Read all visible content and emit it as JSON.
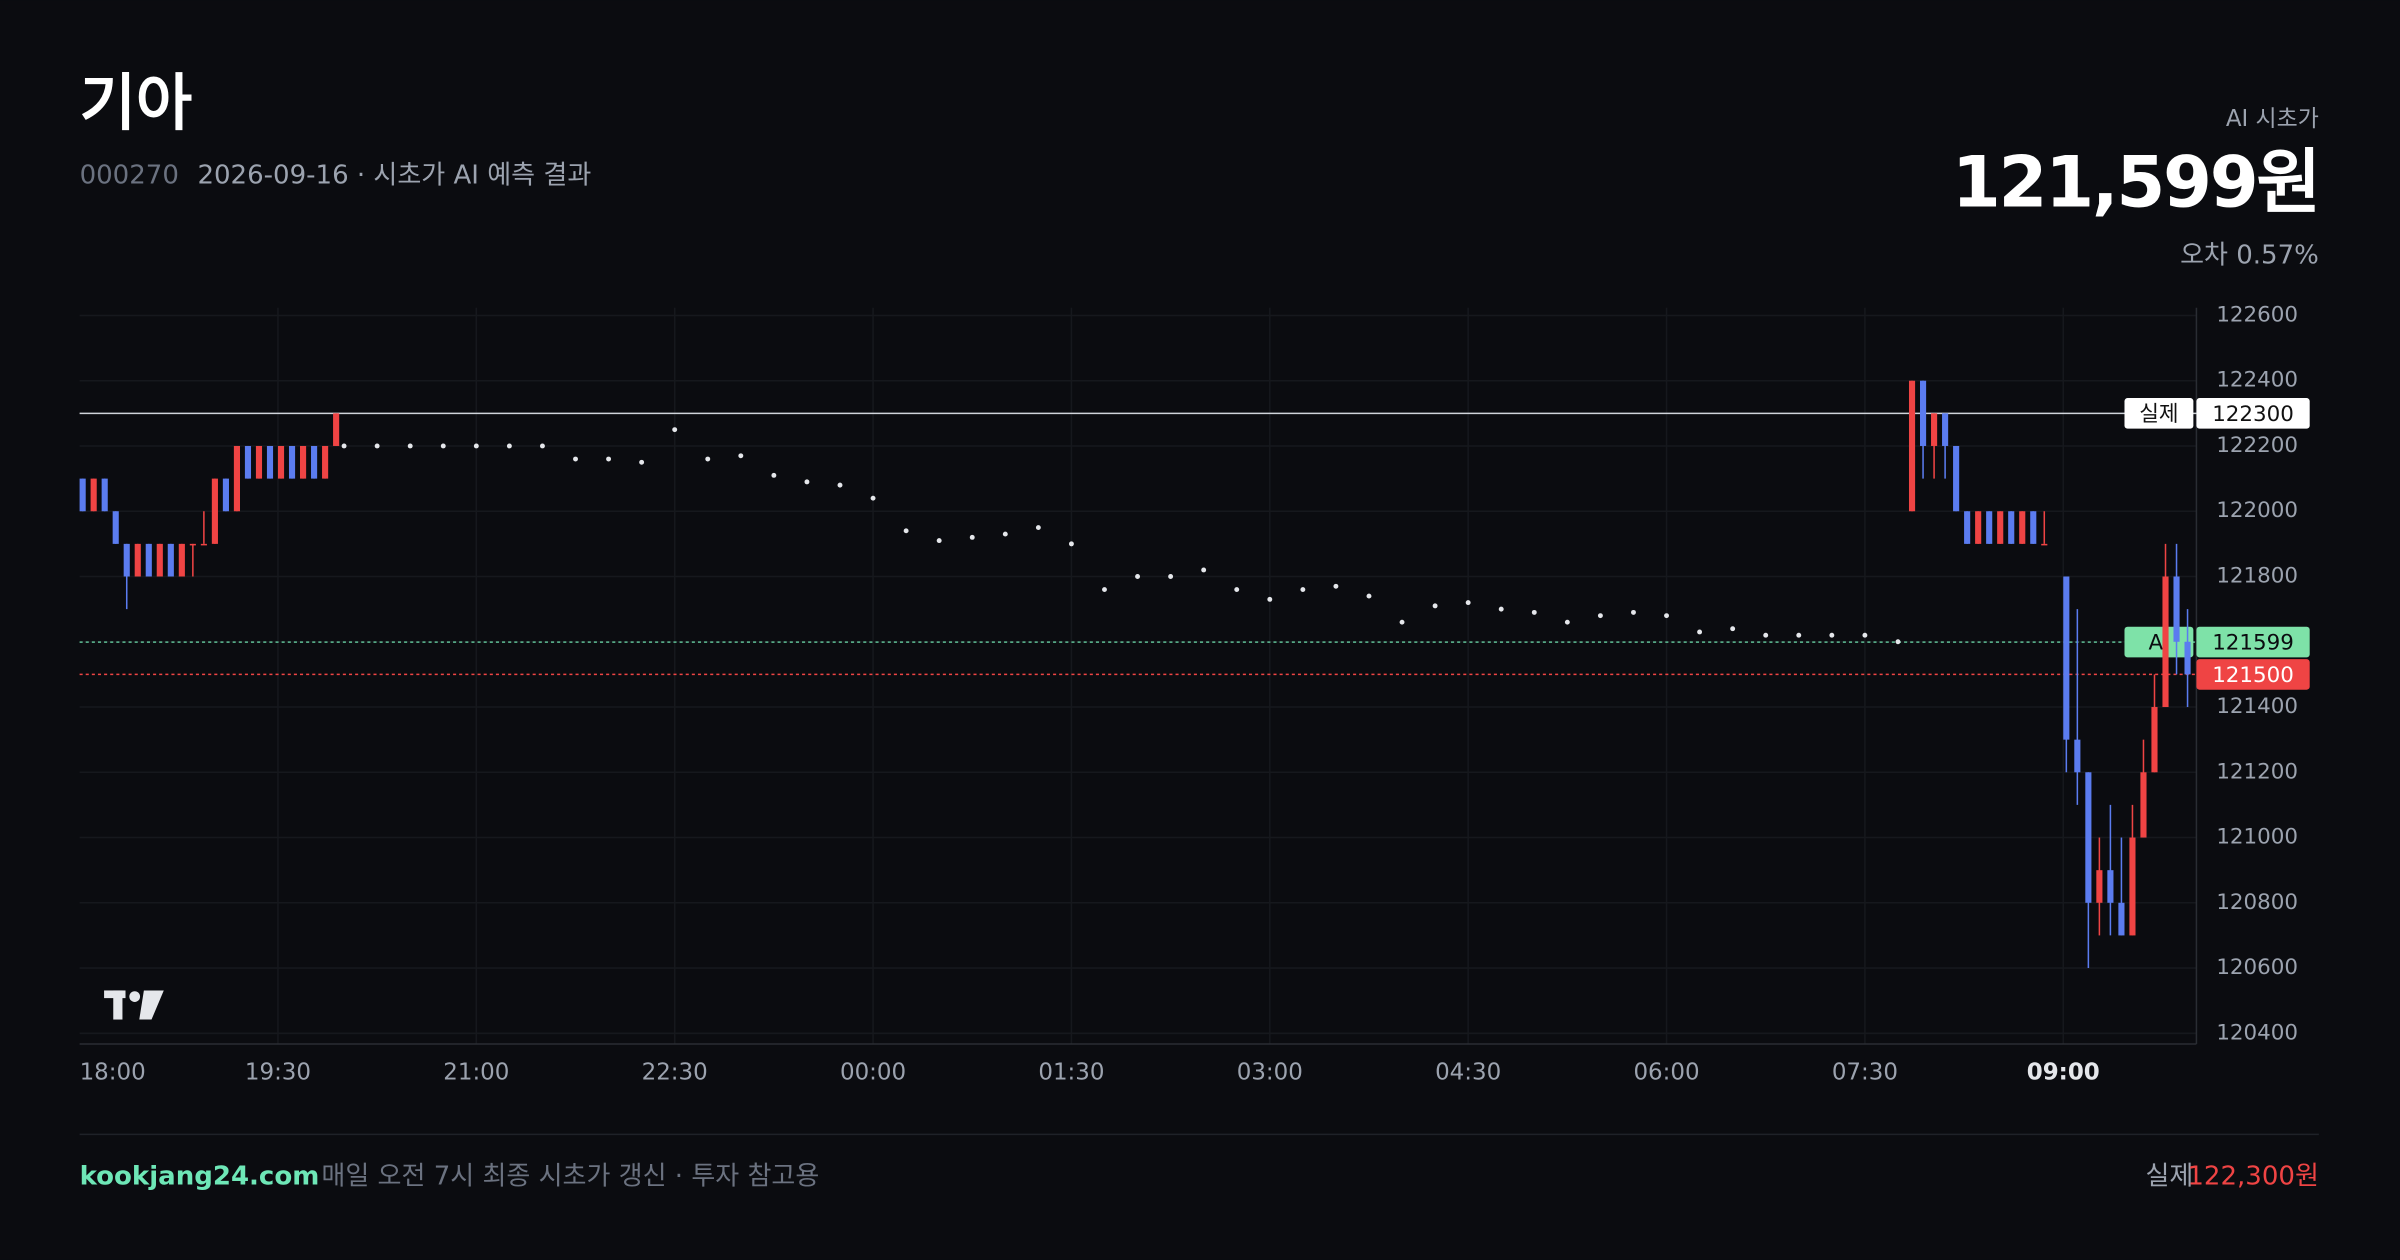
{
  "header": {
    "title": "기아",
    "code": "000270",
    "subtitle": "2026-09-16 · 시초가 AI 예측 결과",
    "prediction_label": "AI 시초가",
    "prediction": "121,599원",
    "error": "오차 0.57%"
  },
  "footer": {
    "site": "kookjang24.com",
    "note": "매일 오전 7시 최종 시초가 갱신 · 투자 참고용",
    "actual_label": "실제",
    "actual": "122,300원"
  },
  "chart_data": {
    "type": "candlestick",
    "ylim": [
      120400,
      122600
    ],
    "yticks": [
      120400,
      120600,
      120800,
      121000,
      121200,
      121400,
      121600,
      121800,
      122000,
      122200,
      122400,
      122600
    ],
    "xticks": [
      "18:00",
      "19:30",
      "21:00",
      "22:30",
      "00:00",
      "01:30",
      "03:00",
      "04:30",
      "06:00",
      "07:30",
      "09:00"
    ],
    "grid": true,
    "up_color": "#ef4444",
    "down_color": "#5b7cf0",
    "candles": [
      {
        "x": [
          "18:00",
          "18:05",
          "18:10",
          "18:15",
          "18:20",
          "18:25",
          "18:30",
          "18:35",
          "18:40",
          "18:45",
          "18:50",
          "18:55",
          "19:00",
          "19:05",
          "19:10",
          "19:15",
          "19:20",
          "19:25",
          "19:30",
          "19:35",
          "19:40",
          "19:45",
          "19:50",
          "19:55"
        ],
        "open": [
          122100,
          122000,
          122100,
          122000,
          121900,
          121800,
          121900,
          121800,
          121900,
          121800,
          121900,
          121900,
          121900,
          122100,
          122000,
          122200,
          122100,
          122200,
          122100,
          122200,
          122100,
          122200,
          122100,
          122200
        ],
        "high": [
          122100,
          122100,
          122100,
          122000,
          121900,
          121900,
          121900,
          121900,
          121900,
          121900,
          121900,
          122000,
          122100,
          122100,
          122200,
          122200,
          122200,
          122200,
          122200,
          122200,
          122200,
          122200,
          122200,
          122300
        ],
        "low": [
          122000,
          122000,
          122000,
          121900,
          121700,
          121800,
          121800,
          121800,
          121800,
          121800,
          121800,
          121900,
          121900,
          122000,
          122000,
          122100,
          122100,
          122100,
          122100,
          122100,
          122100,
          122100,
          122100,
          122200
        ],
        "close": [
          122000,
          122100,
          122000,
          121900,
          121800,
          121900,
          121800,
          121900,
          121800,
          121900,
          121900,
          121900,
          122100,
          122000,
          122200,
          122100,
          122200,
          122100,
          122200,
          122100,
          122200,
          122100,
          122200,
          122300
        ]
      },
      {
        "x": [
          "07:50",
          "07:55",
          "08:00",
          "08:05",
          "08:10",
          "08:15",
          "08:20",
          "08:25",
          "08:30",
          "08:35",
          "08:40",
          "08:45",
          "08:50",
          "09:00",
          "09:05",
          "09:10",
          "09:15",
          "09:20",
          "09:25",
          "09:30",
          "09:35",
          "09:40",
          "09:45",
          "09:50",
          "09:55"
        ],
        "open": [
          122000,
          122400,
          122200,
          122300,
          122200,
          122000,
          121900,
          122000,
          121900,
          122000,
          121900,
          122000,
          121900,
          121800,
          121300,
          121200,
          120800,
          120900,
          120800,
          120700,
          121000,
          121200,
          121400,
          121800,
          121600
        ],
        "high": [
          122400,
          122400,
          122300,
          122300,
          122200,
          122000,
          122000,
          122000,
          122000,
          122000,
          122000,
          122000,
          122000,
          121800,
          121700,
          121200,
          121000,
          121100,
          121000,
          121100,
          121300,
          121500,
          121900,
          121900,
          121700
        ],
        "low": [
          122000,
          122100,
          122100,
          122100,
          122000,
          121900,
          121900,
          121900,
          121900,
          121900,
          121900,
          121900,
          121900,
          121200,
          121100,
          120600,
          120700,
          120700,
          120700,
          120700,
          121000,
          121200,
          121400,
          121500,
          121400
        ],
        "close": [
          122400,
          122200,
          122300,
          122200,
          122000,
          121900,
          122000,
          121900,
          122000,
          121900,
          122000,
          121900,
          121900,
          121300,
          121200,
          120800,
          120900,
          120800,
          120700,
          121000,
          121200,
          121400,
          121800,
          121600,
          121500
        ]
      }
    ],
    "ai_line": {
      "color": "#e5e7eb",
      "x": [
        "20:00",
        "20:15",
        "20:30",
        "20:45",
        "21:00",
        "21:15",
        "21:30",
        "21:45",
        "22:00",
        "22:15",
        "22:30",
        "22:45",
        "23:00",
        "23:15",
        "23:30",
        "23:45",
        "00:00",
        "00:15",
        "00:30",
        "00:45",
        "01:00",
        "01:15",
        "01:30",
        "01:45",
        "02:00",
        "02:15",
        "02:30",
        "02:45",
        "03:00",
        "03:15",
        "03:30",
        "03:45",
        "04:00",
        "04:15",
        "04:30",
        "04:45",
        "05:00",
        "05:15",
        "05:30",
        "05:45",
        "06:00",
        "06:15",
        "06:30",
        "06:45",
        "07:00",
        "07:15",
        "07:30",
        "07:45"
      ],
      "values": [
        122200,
        122200,
        122200,
        122200,
        122200,
        122200,
        122200,
        122160,
        122160,
        122150,
        122250,
        122160,
        122170,
        122110,
        122090,
        122080,
        122040,
        121940,
        121910,
        121920,
        121930,
        121950,
        121900,
        121760,
        121800,
        121800,
        121820,
        121760,
        121730,
        121760,
        121770,
        121740,
        121660,
        121710,
        121720,
        121700,
        121690,
        121660,
        121680,
        121690,
        121680,
        121630,
        121640,
        121620,
        121620,
        121620,
        121620,
        121600
      ]
    },
    "lines": [
      {
        "name": "실제",
        "value": 122300,
        "color": "#d1d5db",
        "dash": false,
        "tag_bg": "#ffffff",
        "tag_fg": "#111111"
      },
      {
        "name": "AI",
        "value": 121599,
        "color": "#5fbf95",
        "dash": true,
        "tag_bg": "#7ee2a8",
        "tag_fg": "#0b0c10"
      },
      {
        "value": 121500,
        "color": "#ef4444",
        "dash": true,
        "tag_bg": "#ef4444",
        "tag_fg": "#ffffff"
      }
    ]
  }
}
